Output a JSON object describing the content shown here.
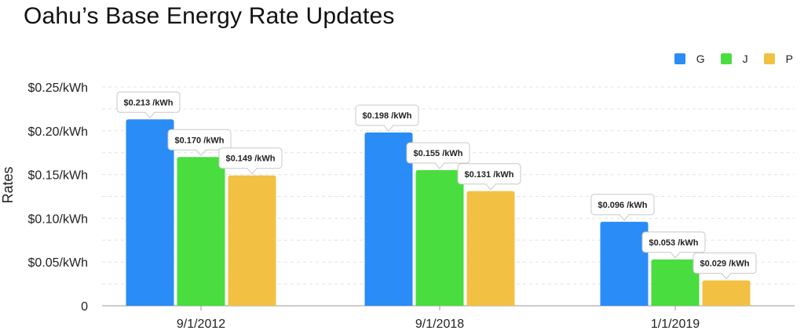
{
  "colors": {
    "G": "#2a8cf6",
    "J": "#49dd3f",
    "P": "#f2c143"
  },
  "chart_data": {
    "type": "bar",
    "title": "Oahu’s Base Energy Rate Updates",
    "ylabel": "Rates",
    "xlabel": "",
    "categories": [
      "9/1/2012",
      "9/1/2018",
      "1/1/2019"
    ],
    "series": [
      {
        "name": "G",
        "values": [
          0.213,
          0.198,
          0.096
        ],
        "labels": [
          "$0.213 /kWh",
          "$0.198 /kWh",
          "$0.096 /kWh"
        ]
      },
      {
        "name": "J",
        "values": [
          0.17,
          0.155,
          0.053
        ],
        "labels": [
          "$0.170 /kWh",
          "$0.155 /kWh",
          "$0.053 /kWh"
        ]
      },
      {
        "name": "P",
        "values": [
          0.149,
          0.131,
          0.029
        ],
        "labels": [
          "$0.149 /kWh",
          "$0.131 /kWh",
          "$0.029 /kWh"
        ]
      }
    ],
    "ylim": [
      0,
      0.25
    ],
    "yticks": [
      {
        "value": 0,
        "label": "0"
      },
      {
        "value": 0.05,
        "label": "$0.05/kWh"
      },
      {
        "value": 0.1,
        "label": "$0.10/kWh"
      },
      {
        "value": 0.15,
        "label": "$0.15/kWh"
      },
      {
        "value": 0.2,
        "label": "$0.20/kWh"
      },
      {
        "value": 0.25,
        "label": "$0.25/kWh"
      }
    ],
    "grid": true,
    "legend_position": "top-right"
  }
}
